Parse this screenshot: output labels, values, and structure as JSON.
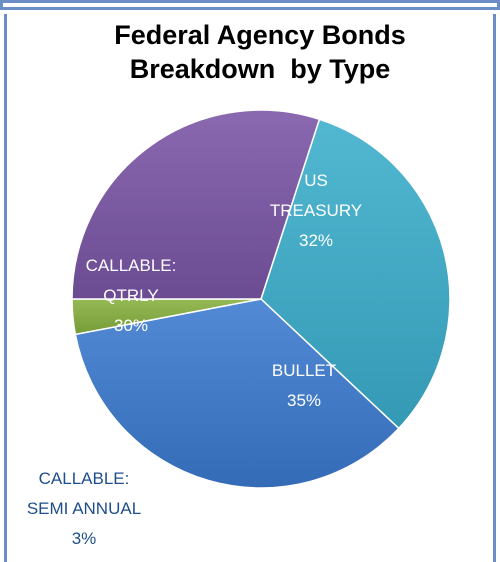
{
  "chart_data": {
    "type": "pie",
    "title": [
      "Federal Agency Bonds",
      "Breakdown  by Type"
    ],
    "slices": [
      {
        "label_lines": [
          "US",
          "TREASURY"
        ],
        "pct_label": "32%",
        "value": 32,
        "color": "#3aaecc",
        "text_color": "#ffffff"
      },
      {
        "label_lines": [
          "BULLET"
        ],
        "pct_label": "35%",
        "value": 35,
        "color": "#3b7ad0",
        "text_color": "#ffffff"
      },
      {
        "label_lines": [
          "CALLABLE:",
          "SEMI ANNUAL"
        ],
        "pct_label": "3%",
        "value": 3,
        "color": "#86b13e",
        "text_color": "#1f4e8c"
      },
      {
        "label_lines": [
          "CALLABLE:",
          "QTRLY"
        ],
        "pct_label": "30%",
        "value": 30,
        "color": "#7a55a6",
        "text_color": "#ffffff"
      }
    ],
    "legend": "none"
  }
}
